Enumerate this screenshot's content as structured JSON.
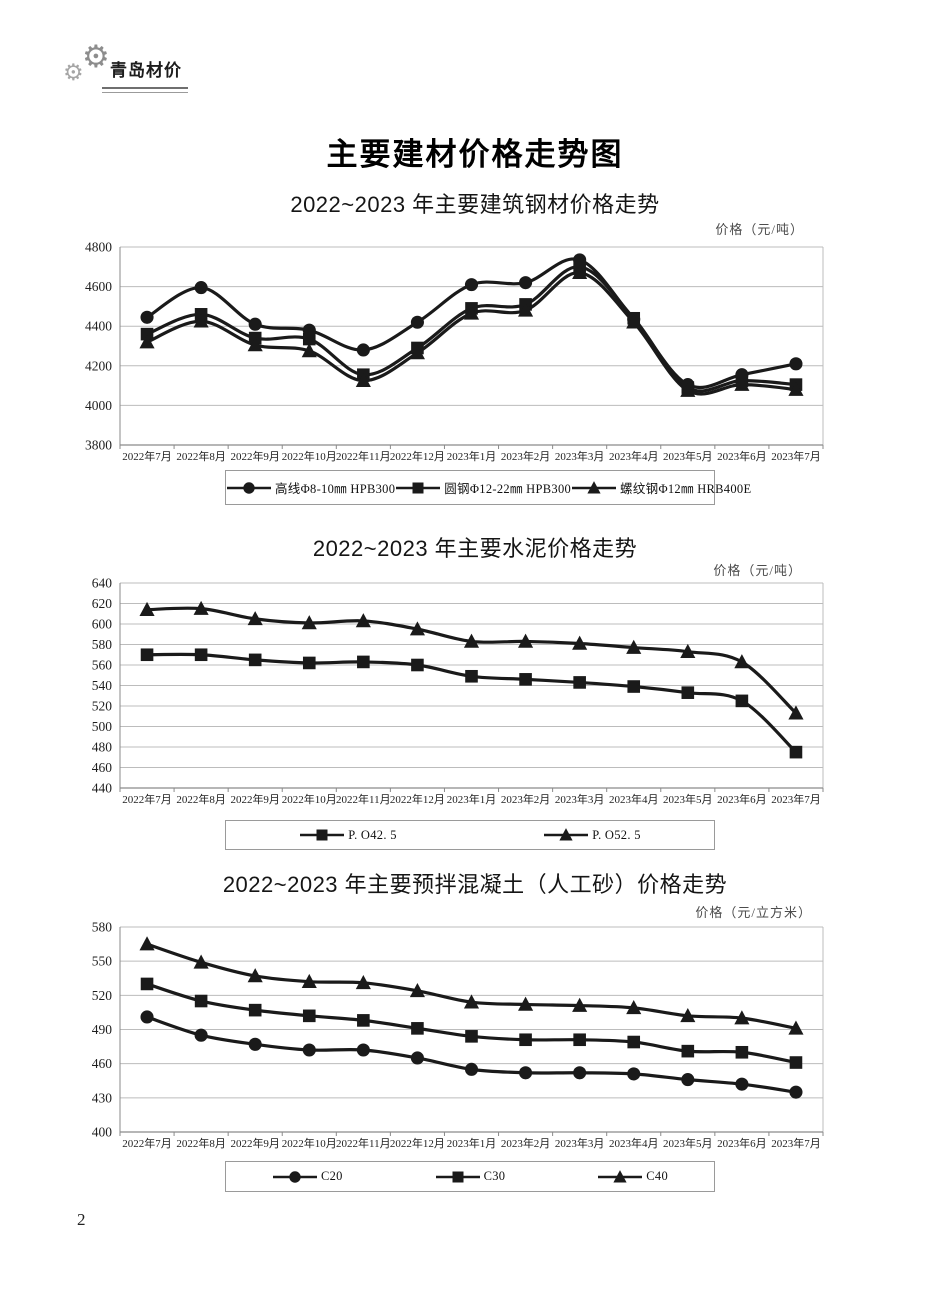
{
  "logo": {
    "text": "青岛材价"
  },
  "page_title": "主要建材价格走势图",
  "page_number": "2",
  "colors": {
    "series_line": "#1a1a1a",
    "grid": "#bcbcbc",
    "axis": "#8a8a8a",
    "label_text": "#1f1f1f"
  },
  "chart_data": [
    {
      "type": "line",
      "title": "2022~2023 年主要建筑钢材价格走势",
      "unit_label": "价格（元/吨）",
      "ylim": [
        3800,
        4800
      ],
      "ytick_step": 200,
      "grid": true,
      "legend_position": "bottom",
      "categories": [
        "2022年7月",
        "2022年8月",
        "2022年9月",
        "2022年10月",
        "2022年11月",
        "2022年12月",
        "2023年1月",
        "2023年2月",
        "2023年3月",
        "2023年4月",
        "2023年5月",
        "2023年6月",
        "2023年7月"
      ],
      "series": [
        {
          "name": "高线Φ8-10㎜ HPB300",
          "marker": "circle",
          "values": [
            4445,
            4595,
            4410,
            4380,
            4280,
            4420,
            4610,
            4620,
            4735,
            4435,
            4105,
            4155,
            4210
          ]
        },
        {
          "name": "圆钢Φ12-22㎜ HPB300",
          "marker": "square",
          "values": [
            4360,
            4460,
            4340,
            4335,
            4155,
            4290,
            4490,
            4510,
            4700,
            4440,
            4090,
            4125,
            4105
          ]
        },
        {
          "name": "螺纹钢Φ12㎜ HRB400E",
          "marker": "triangle",
          "values": [
            4320,
            4425,
            4305,
            4275,
            4125,
            4265,
            4465,
            4480,
            4670,
            4420,
            4075,
            4105,
            4080
          ]
        }
      ]
    },
    {
      "type": "line",
      "title": "2022~2023 年主要水泥价格走势",
      "unit_label": "价格（元/吨）",
      "ylim": [
        440,
        640
      ],
      "ytick_step": 20,
      "grid": true,
      "legend_position": "bottom",
      "categories": [
        "2022年7月",
        "2022年8月",
        "2022年9月",
        "2022年10月",
        "2022年11月",
        "2022年12月",
        "2023年1月",
        "2023年2月",
        "2023年3月",
        "2023年4月",
        "2023年5月",
        "2023年6月",
        "2023年7月"
      ],
      "series": [
        {
          "name": "P. O42. 5",
          "marker": "square",
          "values": [
            570,
            570,
            565,
            562,
            563,
            560,
            549,
            546,
            543,
            539,
            533,
            525,
            475
          ]
        },
        {
          "name": "P. O52. 5",
          "marker": "triangle",
          "values": [
            614,
            615,
            605,
            601,
            603,
            595,
            583,
            583,
            581,
            577,
            573,
            563,
            513
          ]
        }
      ]
    },
    {
      "type": "line",
      "title": "2022~2023 年主要预拌混凝土（人工砂）价格走势",
      "unit_label": "价格（元/立方米）",
      "ylim": [
        400,
        580
      ],
      "ytick_step": 30,
      "grid": true,
      "legend_position": "bottom",
      "categories": [
        "2022年7月",
        "2022年8月",
        "2022年9月",
        "2022年10月",
        "2022年11月",
        "2022年12月",
        "2023年1月",
        "2023年2月",
        "2023年3月",
        "2023年4月",
        "2023年5月",
        "2023年6月",
        "2023年7月"
      ],
      "series": [
        {
          "name": "C20",
          "marker": "circle",
          "values": [
            501,
            485,
            477,
            472,
            472,
            465,
            455,
            452,
            452,
            451,
            446,
            442,
            435
          ]
        },
        {
          "name": "C30",
          "marker": "square",
          "values": [
            530,
            515,
            507,
            502,
            498,
            491,
            484,
            481,
            481,
            479,
            471,
            470,
            461
          ]
        },
        {
          "name": "C40",
          "marker": "triangle",
          "values": [
            565,
            549,
            537,
            532,
            531,
            524,
            514,
            512,
            511,
            509,
            502,
            500,
            491
          ]
        }
      ]
    }
  ]
}
